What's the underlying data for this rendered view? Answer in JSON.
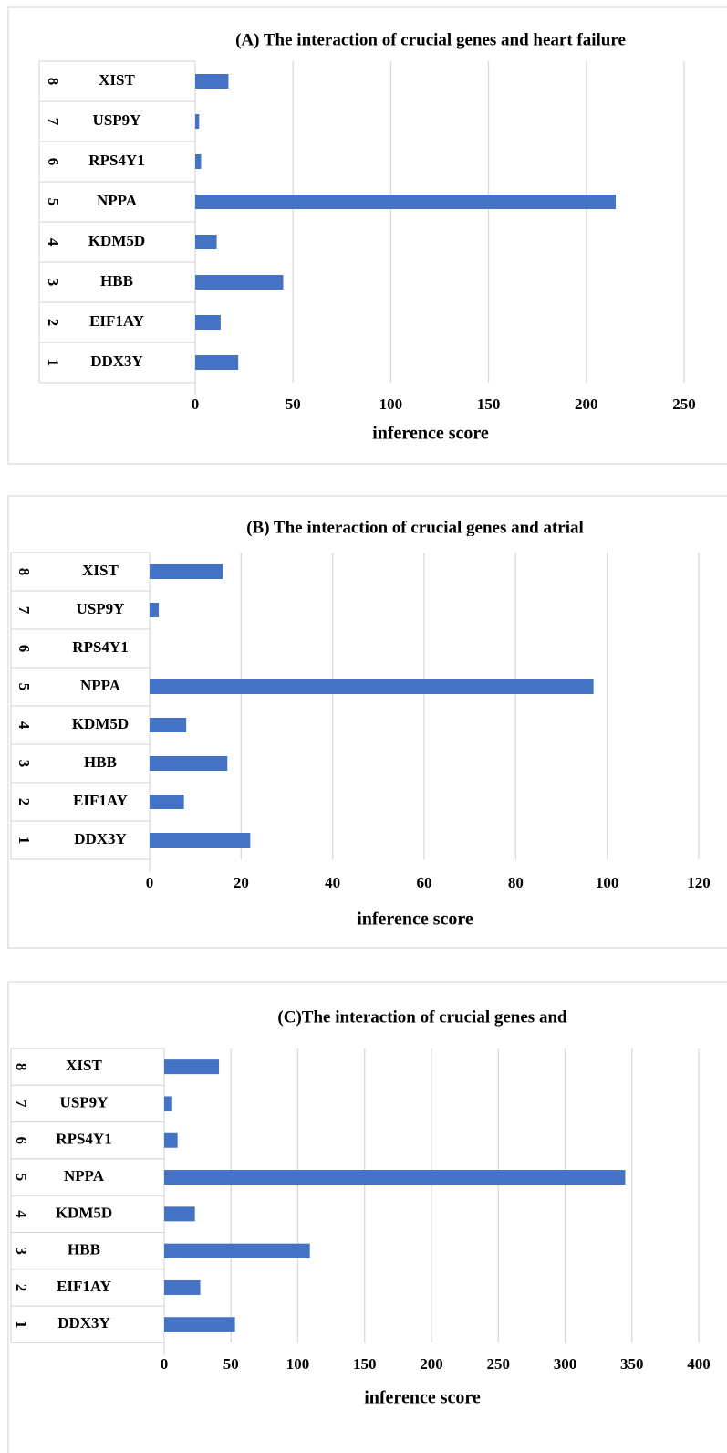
{
  "chart_data": [
    {
      "type": "bar",
      "orientation": "horizontal",
      "title": "(A) The interaction of crucial genes and heart failure",
      "x_label": "inference score",
      "categories": [
        "DDX3Y",
        "EIF1AY",
        "HBB",
        "KDM5D",
        "NPPA",
        "RPS4Y1",
        "USP9Y",
        "XIST"
      ],
      "row_labels": [
        "1",
        "2",
        "3",
        "4",
        "5",
        "6",
        "7",
        "8"
      ],
      "values": [
        22,
        13,
        45,
        11,
        215,
        3,
        2,
        17
      ],
      "color": "#4472c4",
      "xlim": [
        0,
        250
      ],
      "xticks": [
        0,
        50,
        100,
        150,
        200,
        250
      ],
      "grid": true
    },
    {
      "type": "bar",
      "orientation": "horizontal",
      "title": "(B) The interaction of crucial genes and atrial",
      "x_label": "inference score",
      "categories": [
        "DDX3Y",
        "EIF1AY",
        "HBB",
        "KDM5D",
        "NPPA",
        "RPS4Y1",
        "USP9Y",
        "XIST"
      ],
      "row_labels": [
        "1",
        "2",
        "3",
        "4",
        "5",
        "6",
        "7",
        "8"
      ],
      "values": [
        22,
        7.5,
        17,
        8,
        97,
        0,
        2,
        16
      ],
      "color": "#4472c4",
      "xlim": [
        0,
        120
      ],
      "xticks": [
        0,
        20,
        40,
        60,
        80,
        100,
        120
      ],
      "grid": true
    },
    {
      "type": "bar",
      "orientation": "horizontal",
      "title": "(C)The interaction of crucial genes and",
      "x_label": "inference score",
      "categories": [
        "DDX3Y",
        "EIF1AY",
        "HBB",
        "KDM5D",
        "NPPA",
        "RPS4Y1",
        "USP9Y",
        "XIST"
      ],
      "row_labels": [
        "1",
        "2",
        "3",
        "4",
        "5",
        "6",
        "7",
        "8"
      ],
      "values": [
        53,
        27,
        109,
        23,
        345,
        10,
        6,
        41
      ],
      "color": "#4472c4",
      "xlim": [
        0,
        400
      ],
      "xticks": [
        0,
        50,
        100,
        150,
        200,
        250,
        300,
        350,
        400
      ],
      "grid": true
    }
  ]
}
